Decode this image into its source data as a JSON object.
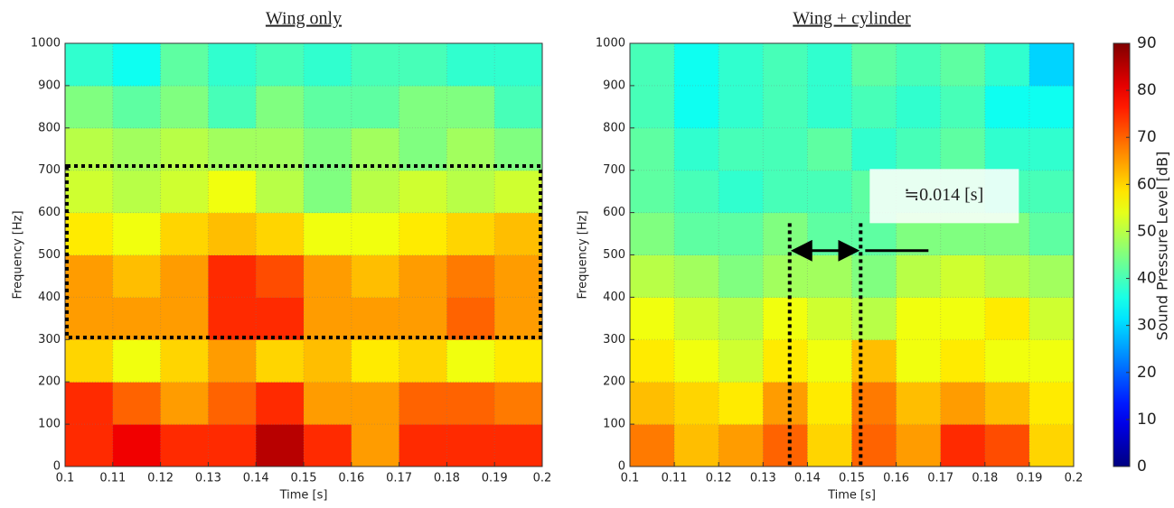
{
  "chart_data": [
    {
      "type": "heatmap",
      "title": "Wing only",
      "x_label": "Time [s]",
      "y_label": "Frequency [Hz]",
      "xbins": [
        0.1,
        0.11,
        0.12,
        0.13,
        0.14,
        0.15,
        0.16,
        0.17,
        0.18,
        0.19,
        0.2
      ],
      "ybins": [
        0,
        100,
        200,
        300,
        400,
        500,
        600,
        700,
        800,
        900,
        1000
      ],
      "z": [
        [
          75,
          80,
          75,
          75,
          85,
          75,
          65,
          75,
          75,
          75
        ],
        [
          75,
          70,
          65,
          70,
          75,
          65,
          65,
          70,
          70,
          68
        ],
        [
          60,
          55,
          60,
          65,
          60,
          62,
          58,
          60,
          55,
          58
        ],
        [
          65,
          65,
          65,
          75,
          75,
          65,
          65,
          65,
          70,
          65
        ],
        [
          65,
          62,
          65,
          75,
          72,
          65,
          62,
          65,
          68,
          65
        ],
        [
          58,
          55,
          60,
          62,
          60,
          55,
          55,
          58,
          60,
          62
        ],
        [
          52,
          50,
          52,
          55,
          50,
          45,
          50,
          52,
          50,
          52
        ],
        [
          50,
          48,
          50,
          48,
          48,
          45,
          48,
          45,
          48,
          45
        ],
        [
          45,
          42,
          45,
          40,
          45,
          42,
          42,
          45,
          45,
          40
        ],
        [
          38,
          35,
          42,
          38,
          40,
          38,
          40,
          40,
          38,
          38
        ]
      ],
      "xlim": [
        0.1,
        0.2
      ],
      "ylim": [
        0,
        1000
      ],
      "xticks": [
        0.1,
        0.11,
        0.12,
        0.13,
        0.14,
        0.15,
        0.16,
        0.17,
        0.18,
        0.19,
        0.2
      ],
      "yticks": [
        0,
        100,
        200,
        300,
        400,
        500,
        600,
        700,
        800,
        900,
        1000
      ],
      "grid": true,
      "box": {
        "x": [
          0.1,
          0.2
        ],
        "y": [
          305,
          710
        ]
      }
    },
    {
      "type": "heatmap",
      "title": "Wing + cylinder",
      "x_label": "Time [s]",
      "y_label": "Frequency [Hz]",
      "xbins": [
        0.1,
        0.11,
        0.12,
        0.13,
        0.14,
        0.15,
        0.16,
        0.17,
        0.18,
        0.19,
        0.2
      ],
      "ybins": [
        0,
        100,
        200,
        300,
        400,
        500,
        600,
        700,
        800,
        900,
        1000
      ],
      "z": [
        [
          68,
          62,
          65,
          70,
          60,
          70,
          65,
          75,
          72,
          60
        ],
        [
          62,
          60,
          58,
          65,
          58,
          68,
          62,
          65,
          62,
          58
        ],
        [
          58,
          55,
          52,
          58,
          55,
          62,
          55,
          58,
          55,
          55
        ],
        [
          55,
          52,
          50,
          55,
          52,
          50,
          55,
          55,
          58,
          52
        ],
        [
          50,
          48,
          45,
          48,
          48,
          45,
          50,
          52,
          50,
          48
        ],
        [
          45,
          42,
          42,
          45,
          42,
          42,
          45,
          45,
          45,
          42
        ],
        [
          42,
          40,
          38,
          40,
          40,
          42,
          42,
          42,
          40,
          40
        ],
        [
          42,
          38,
          40,
          40,
          42,
          38,
          40,
          42,
          38,
          38
        ],
        [
          40,
          35,
          38,
          40,
          38,
          40,
          38,
          40,
          35,
          35
        ],
        [
          40,
          35,
          38,
          40,
          38,
          42,
          40,
          42,
          38,
          30
        ]
      ],
      "xlim": [
        0.1,
        0.2
      ],
      "ylim": [
        0,
        1000
      ],
      "xticks": [
        0.1,
        0.11,
        0.12,
        0.13,
        0.14,
        0.15,
        0.16,
        0.17,
        0.18,
        0.19,
        0.2
      ],
      "yticks": [
        0,
        100,
        200,
        300,
        400,
        500,
        600,
        700,
        800,
        900,
        1000
      ],
      "grid": true,
      "vlines": [
        0.136,
        0.152
      ],
      "vline_top": 575,
      "arrow_y": 510,
      "annotation": "≒0.014 [s]",
      "colorbar": {
        "label": "Sound Pressure Level [dB]",
        "colormap": "jet",
        "lim": [
          0,
          90
        ],
        "ticks": [
          0,
          10,
          20,
          30,
          40,
          50,
          60,
          70,
          80,
          90
        ]
      }
    }
  ]
}
